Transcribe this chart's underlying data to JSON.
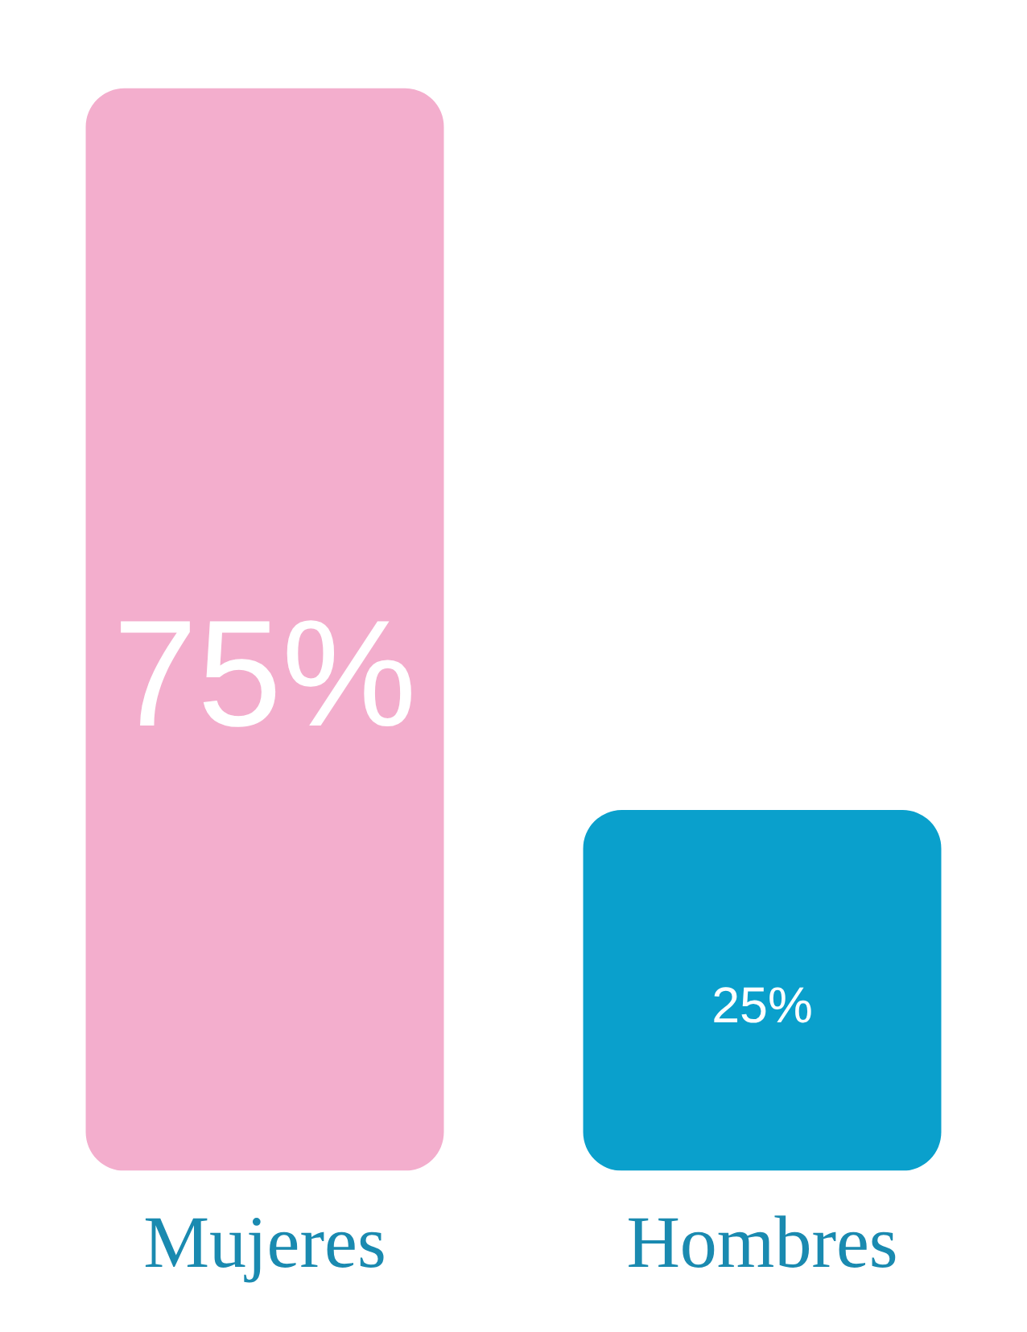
{
  "chart_data": {
    "type": "bar",
    "categories": [
      "Mujeres",
      "Hombres"
    ],
    "values": [
      75,
      25
    ],
    "colors": [
      "#f3aecd",
      "#0aa0cc"
    ],
    "value_labels": [
      "75%",
      "25%"
    ],
    "tick_labels": "x",
    "grid": false,
    "legend": false
  }
}
